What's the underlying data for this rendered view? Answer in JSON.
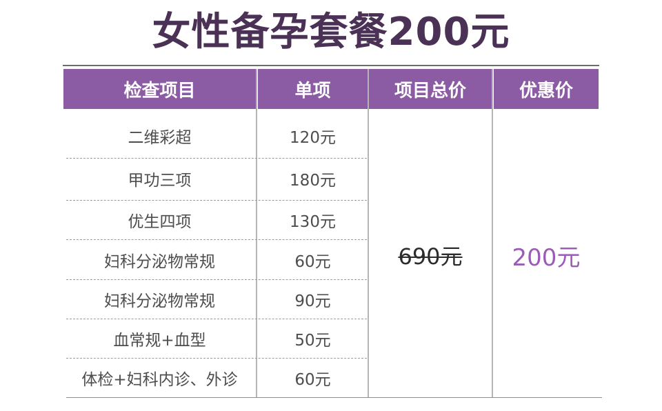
{
  "title": "女性备孕套餐200元",
  "headers": {
    "item": "检查项目",
    "unit_price": "单项",
    "total_price": "项目总价",
    "discount_price": "优惠价"
  },
  "rows": [
    {
      "name": "二维彩超",
      "price": "120元"
    },
    {
      "name": "甲功三项",
      "price": "180元"
    },
    {
      "name": "优生四项",
      "price": "130元"
    },
    {
      "name": "妇科分泌物常规",
      "price": "60元"
    },
    {
      "name": "妇科分泌物常规",
      "price": "90元"
    },
    {
      "name": "血常规+血型",
      "price": "50元"
    },
    {
      "name": "体检+妇科内诊、外诊",
      "price": "60元"
    }
  ],
  "total_price": "690元",
  "discount_price": "200元",
  "colors": {
    "header_bg": "#8b5ba3",
    "title": "#4a3155",
    "discount": "#9a5cb8"
  }
}
